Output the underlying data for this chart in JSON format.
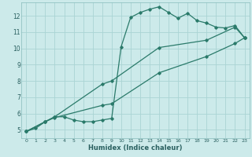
{
  "xlabel": "Humidex (Indice chaleur)",
  "bg_color": "#cceaea",
  "grid_color": "#aad4d4",
  "line_color": "#2a7a6a",
  "xlim": [
    -0.5,
    23.5
  ],
  "ylim": [
    4.5,
    12.8
  ],
  "xticks": [
    0,
    1,
    2,
    3,
    4,
    5,
    6,
    7,
    8,
    9,
    10,
    11,
    12,
    13,
    14,
    15,
    16,
    17,
    18,
    19,
    20,
    21,
    22,
    23
  ],
  "yticks": [
    5,
    6,
    7,
    8,
    9,
    10,
    11,
    12
  ],
  "line1_x": [
    0,
    1,
    2,
    3,
    4,
    5,
    6,
    7,
    8,
    9,
    10,
    11,
    12,
    13,
    14,
    15,
    16,
    17,
    18,
    19,
    20,
    21,
    22,
    23
  ],
  "line1_y": [
    4.9,
    5.1,
    5.5,
    5.8,
    5.8,
    5.6,
    5.5,
    5.5,
    5.6,
    5.7,
    10.1,
    11.9,
    12.2,
    12.4,
    12.55,
    12.2,
    11.85,
    12.15,
    11.7,
    11.55,
    11.3,
    11.25,
    11.4,
    10.65
  ],
  "line2_x": [
    0,
    2,
    3,
    8,
    9,
    14,
    19,
    22,
    23
  ],
  "line2_y": [
    4.9,
    5.5,
    5.8,
    7.8,
    8.0,
    10.05,
    10.5,
    11.3,
    10.65
  ],
  "line3_x": [
    0,
    2,
    3,
    8,
    9,
    14,
    19,
    22,
    23
  ],
  "line3_y": [
    4.9,
    5.5,
    5.75,
    6.5,
    6.6,
    8.5,
    9.5,
    10.3,
    10.65
  ]
}
